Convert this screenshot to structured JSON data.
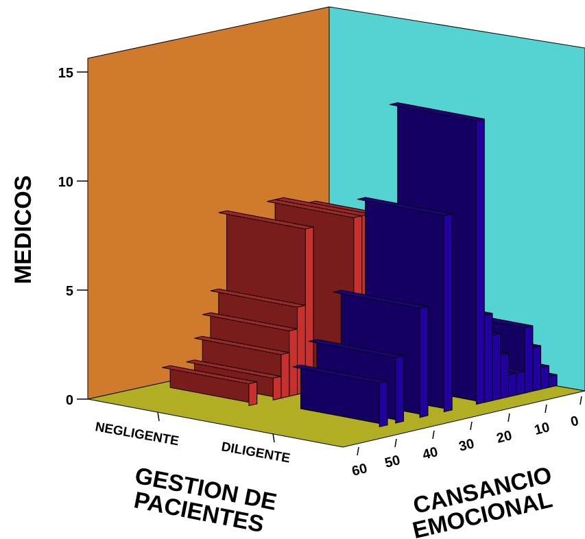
{
  "chart_data": {
    "type": "bar",
    "variant": "3d-histogram",
    "title": "",
    "ylabel": "MEDICOS",
    "xlabel": "GESTION DE PACIENTES",
    "zlabel": "CANSANCIO EMOCIONAL",
    "xlabel_lines": [
      "GESTION DE",
      "PACIENTES"
    ],
    "zlabel_lines": [
      "CANSANCIO",
      "EMOCIONAL"
    ],
    "ylim": [
      0,
      15
    ],
    "yticks": [
      "0",
      "5",
      "10",
      "15"
    ],
    "categories": [
      "NEGLIGENTE",
      "DILIGENTE"
    ],
    "z_ticks": [
      "60",
      "50",
      "40",
      "30",
      "20",
      "10",
      "0"
    ],
    "series": [
      {
        "category": "NEGLIGENTE",
        "color": "#c8302e",
        "bins": [
          {
            "z": 2,
            "value": 2
          },
          {
            "z": 4,
            "value": 1
          },
          {
            "z": 6,
            "value": 5
          },
          {
            "z": 8,
            "value": 7
          },
          {
            "z": 10,
            "value": 2
          },
          {
            "z": 12,
            "value": 6
          },
          {
            "z": 14,
            "value": 6
          },
          {
            "z": 16,
            "value": 7.5
          },
          {
            "z": 18,
            "value": 7.5
          },
          {
            "z": 30,
            "value": 7.5
          },
          {
            "z": 32,
            "value": 4
          },
          {
            "z": 34,
            "value": 3
          },
          {
            "z": 36,
            "value": 2
          },
          {
            "z": 38,
            "value": 1
          },
          {
            "z": 44,
            "value": 1
          }
        ]
      },
      {
        "category": "DILIGENTE",
        "color": "#2200a0",
        "bins": [
          {
            "z": 0,
            "value": 0.5
          },
          {
            "z": 2,
            "value": 1
          },
          {
            "z": 4,
            "value": 2
          },
          {
            "z": 6,
            "value": 3
          },
          {
            "z": 8,
            "value": 1
          },
          {
            "z": 10,
            "value": 1
          },
          {
            "z": 12,
            "value": 2
          },
          {
            "z": 14,
            "value": 3
          },
          {
            "z": 16,
            "value": 4
          },
          {
            "z": 18,
            "value": 13
          },
          {
            "z": 26,
            "value": 9
          },
          {
            "z": 32,
            "value": 5
          },
          {
            "z": 38,
            "value": 3
          },
          {
            "z": 42,
            "value": 2
          }
        ]
      }
    ],
    "colors": {
      "left_wall": "#cf7a2c",
      "right_wall": "#55d2d2",
      "floor": "#b1ae24",
      "bar_gap_fill": "#c9b27a"
    },
    "grid": false,
    "legend": "none"
  }
}
